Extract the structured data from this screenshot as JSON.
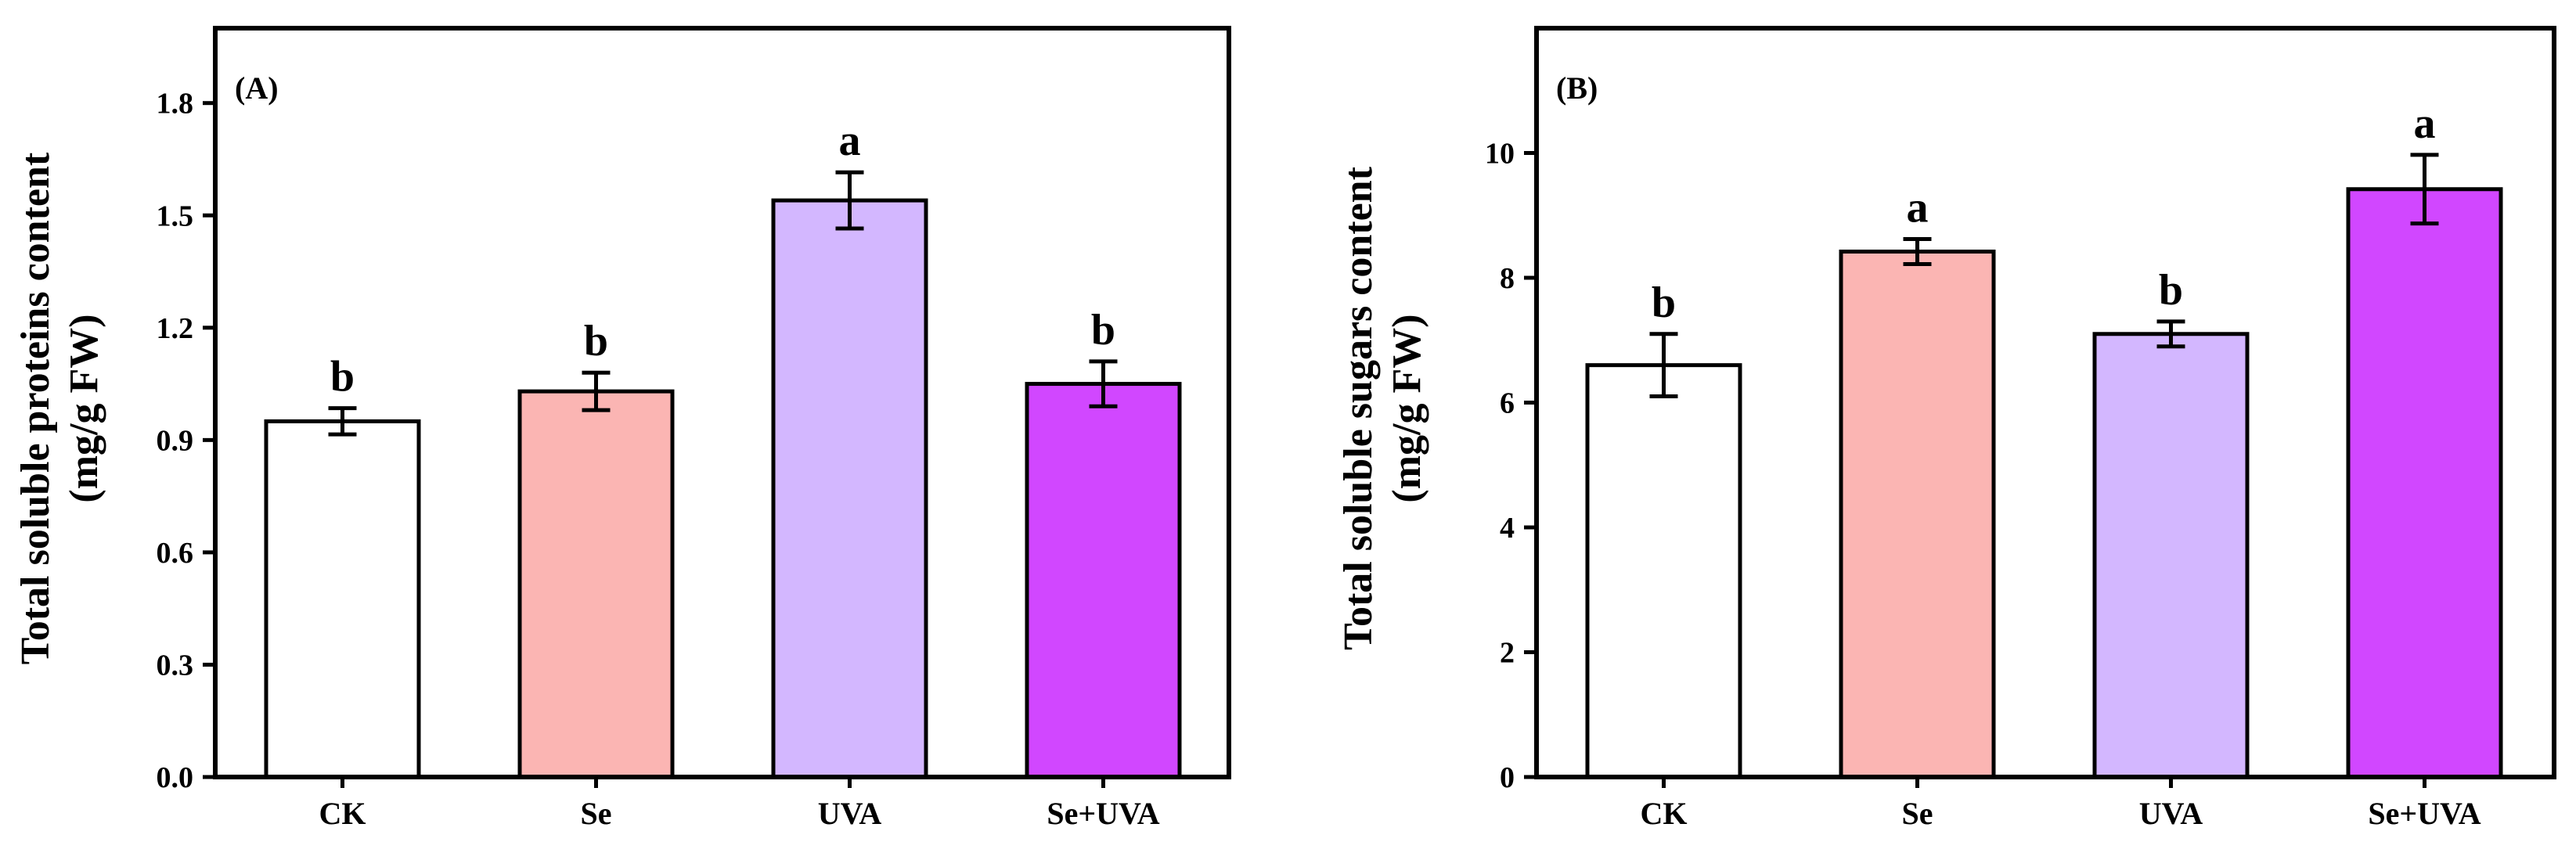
{
  "chart_data": [
    {
      "type": "bar",
      "panel_label": "(A)",
      "categories": [
        "CK",
        "Se",
        "UVA",
        "Se+UVA"
      ],
      "values": [
        0.95,
        1.03,
        1.54,
        1.05
      ],
      "errors": [
        0.035,
        0.05,
        0.075,
        0.06
      ],
      "significance": [
        "b",
        "b",
        "a",
        "b"
      ],
      "colors": [
        "#FFFFFF",
        "#FBB5B3",
        "#D3B7FF",
        "#D147FF"
      ],
      "ylabel_line1": "Total soluble proteins content",
      "ylabel_line2": "(mg/g FW)",
      "ylim": [
        0,
        2.0
      ],
      "yticks": [
        0.0,
        0.3,
        0.6,
        0.9,
        1.2,
        1.5,
        1.8
      ],
      "ytick_labels": [
        "0.0",
        "0.3",
        "0.6",
        "0.9",
        "1.2",
        "1.5",
        "1.8"
      ]
    },
    {
      "type": "bar",
      "panel_label": "(B)",
      "categories": [
        "CK",
        "Se",
        "UVA",
        "Se+UVA"
      ],
      "values": [
        6.6,
        8.42,
        7.1,
        9.42
      ],
      "errors": [
        0.5,
        0.2,
        0.2,
        0.55
      ],
      "significance": [
        "b",
        "a",
        "b",
        "a"
      ],
      "colors": [
        "#FFFFFF",
        "#FBB5B3",
        "#D3B7FF",
        "#D147FF"
      ],
      "ylabel_line1": "Total soluble sugars content",
      "ylabel_line2": "(mg/g FW)",
      "ylim": [
        0,
        12
      ],
      "yticks": [
        0,
        2,
        4,
        6,
        8,
        10
      ],
      "ytick_labels": [
        "0",
        "2",
        "4",
        "6",
        "8",
        "10"
      ]
    }
  ]
}
